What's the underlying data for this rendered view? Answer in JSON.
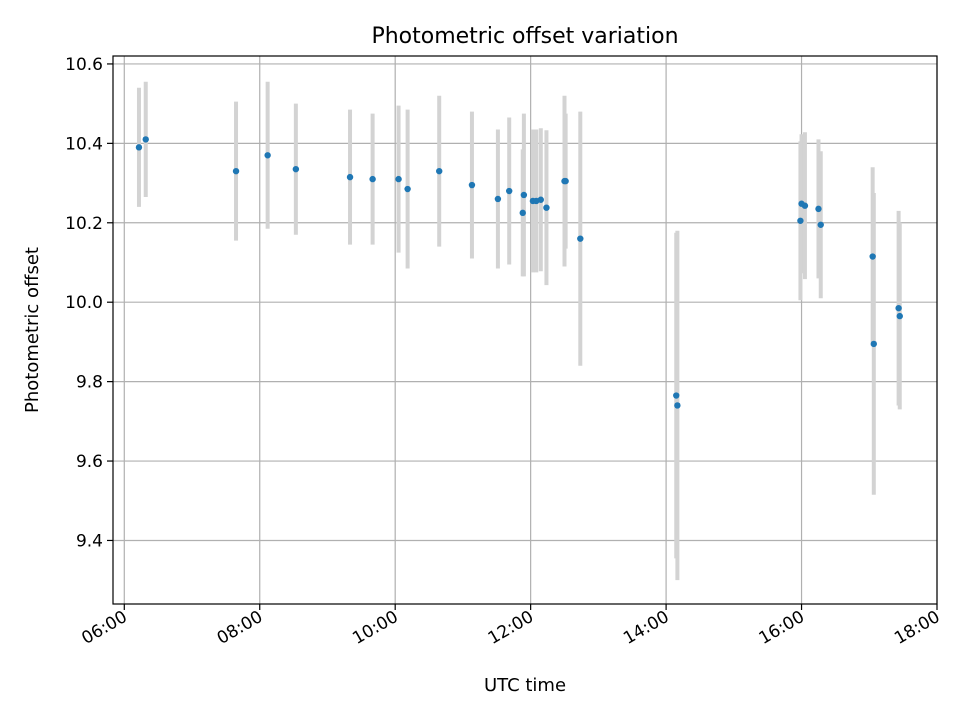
{
  "chart_data": {
    "type": "scatter",
    "title": "Photometric offset variation",
    "xlabel": "UTC time",
    "ylabel": "Photometric offset",
    "x_ticks": [
      "06:00",
      "08:00",
      "10:00",
      "12:00",
      "14:00",
      "16:00",
      "18:00"
    ],
    "y_ticks": [
      "9.4",
      "9.6",
      "9.8",
      "10.0",
      "10.2",
      "10.4",
      "10.6"
    ],
    "xlim": [
      "05:50",
      "18:00"
    ],
    "ylim": [
      9.24,
      10.62
    ],
    "grid": true,
    "marker_color": "#1f77b4",
    "errorbar_color": "#d3d3d3",
    "points": [
      {
        "x": "06:13",
        "y": 10.39,
        "err": 0.15
      },
      {
        "x": "06:19",
        "y": 10.41,
        "err": 0.145
      },
      {
        "x": "07:39",
        "y": 10.33,
        "err": 0.175
      },
      {
        "x": "08:07",
        "y": 10.37,
        "err": 0.185
      },
      {
        "x": "08:32",
        "y": 10.335,
        "err": 0.165
      },
      {
        "x": "09:20",
        "y": 10.315,
        "err": 0.17
      },
      {
        "x": "09:40",
        "y": 10.31,
        "err": 0.165
      },
      {
        "x": "10:03",
        "y": 10.31,
        "err": 0.185
      },
      {
        "x": "10:11",
        "y": 10.285,
        "err": 0.2
      },
      {
        "x": "10:39",
        "y": 10.33,
        "err": 0.19
      },
      {
        "x": "11:08",
        "y": 10.295,
        "err": 0.185
      },
      {
        "x": "11:31",
        "y": 10.26,
        "err": 0.175
      },
      {
        "x": "11:41",
        "y": 10.28,
        "err": 0.185
      },
      {
        "x": "11:53",
        "y": 10.225,
        "err": 0.16
      },
      {
        "x": "11:54",
        "y": 10.27,
        "err": 0.205
      },
      {
        "x": "12:02",
        "y": 10.255,
        "err": 0.18
      },
      {
        "x": "12:05",
        "y": 10.255,
        "err": 0.18
      },
      {
        "x": "12:09",
        "y": 10.258,
        "err": 0.18
      },
      {
        "x": "12:14",
        "y": 10.238,
        "err": 0.195
      },
      {
        "x": "12:30",
        "y": 10.305,
        "err": 0.215
      },
      {
        "x": "12:31",
        "y": 10.305,
        "err": 0.17
      },
      {
        "x": "12:44",
        "y": 10.16,
        "err": 0.32
      },
      {
        "x": "14:09",
        "y": 9.765,
        "err": 0.41
      },
      {
        "x": "14:10",
        "y": 9.74,
        "err": 0.44
      },
      {
        "x": "15:59",
        "y": 10.205,
        "err": 0.2
      },
      {
        "x": "16:00",
        "y": 10.248,
        "err": 0.175
      },
      {
        "x": "16:03",
        "y": 10.243,
        "err": 0.185
      },
      {
        "x": "16:15",
        "y": 10.235,
        "err": 0.175
      },
      {
        "x": "16:17",
        "y": 10.195,
        "err": 0.185
      },
      {
        "x": "17:03",
        "y": 10.115,
        "err": 0.225
      },
      {
        "x": "17:04",
        "y": 9.895,
        "err": 0.38
      },
      {
        "x": "17:26",
        "y": 9.985,
        "err": 0.245
      },
      {
        "x": "17:27",
        "y": 9.965,
        "err": 0.235
      }
    ]
  }
}
